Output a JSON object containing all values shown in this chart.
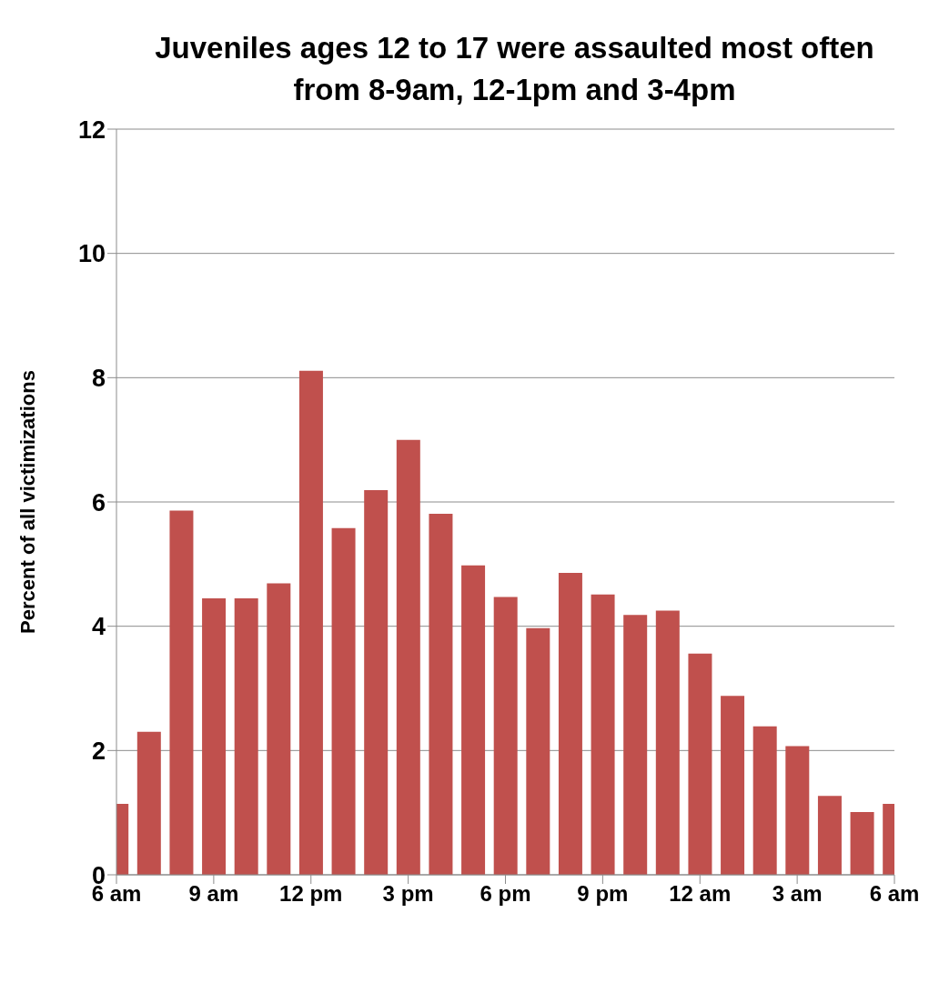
{
  "chart_data": {
    "type": "bar",
    "title": "Juveniles ages 12 to 17 were assaulted most often from 8-9am, 12-1pm and 3-4pm",
    "ylabel": "Percent of all victimizations",
    "categories": [
      "6 am",
      null,
      null,
      "9 am",
      null,
      null,
      "12 pm",
      null,
      null,
      "3 pm",
      null,
      null,
      "6 pm",
      null,
      null,
      "9 pm",
      null,
      null,
      "12 am",
      null,
      null,
      "3 am",
      null,
      null,
      "6 am"
    ],
    "values": [
      1.14,
      2.3,
      5.86,
      4.45,
      4.45,
      4.69,
      8.11,
      5.58,
      6.19,
      7.0,
      5.81,
      4.98,
      4.47,
      3.97,
      4.86,
      4.51,
      4.18,
      4.25,
      3.56,
      2.88,
      2.39,
      2.07,
      1.27,
      1.01,
      1.14
    ],
    "color": "#c0504d",
    "ylim": [
      0,
      12
    ],
    "yticks": [
      0,
      2,
      4,
      6,
      8,
      10,
      12
    ],
    "grid": "y",
    "legend": false
  }
}
